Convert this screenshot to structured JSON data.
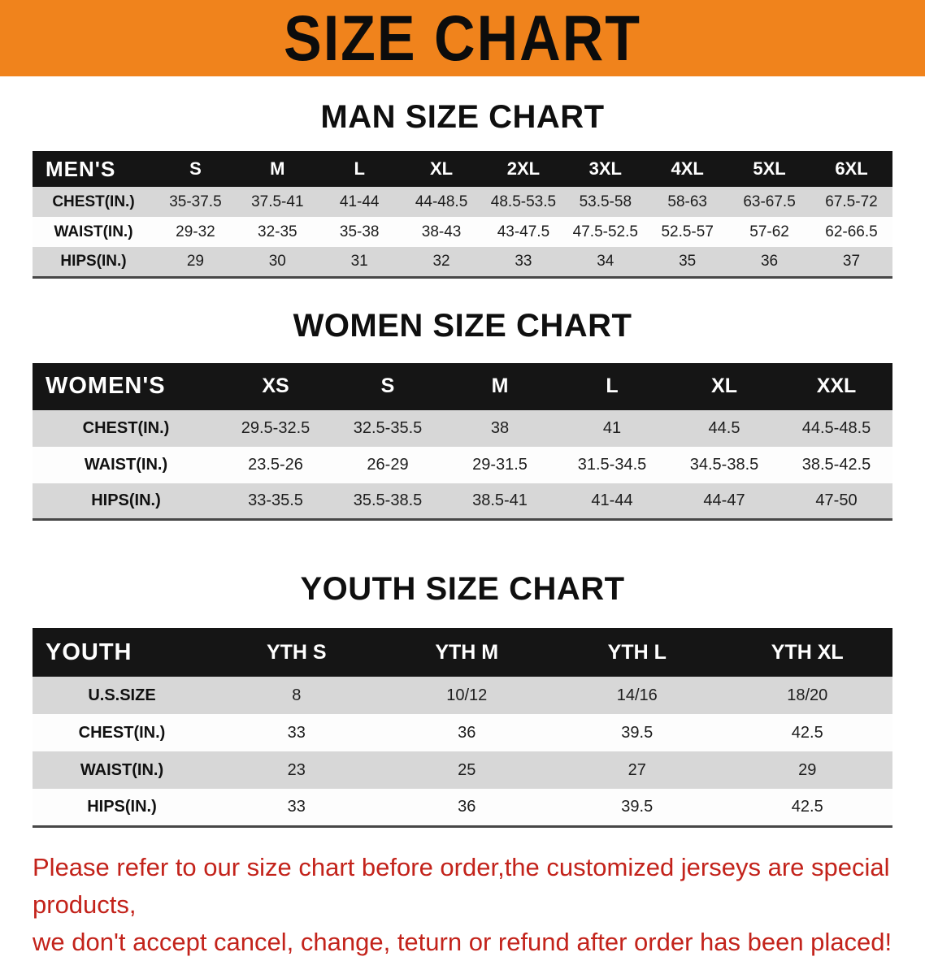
{
  "banner": {
    "title": "SIZE CHART"
  },
  "chart_data": [
    {
      "type": "table",
      "title": "MAN SIZE CHART",
      "columns": [
        "MEN'S",
        "S",
        "M",
        "L",
        "XL",
        "2XL",
        "3XL",
        "4XL",
        "5XL",
        "6XL"
      ],
      "rows": [
        [
          "CHEST(IN.)",
          "35-37.5",
          "37.5-41",
          "41-44",
          "44-48.5",
          "48.5-53.5",
          "53.5-58",
          "58-63",
          "63-67.5",
          "67.5-72"
        ],
        [
          "WAIST(IN.)",
          "29-32",
          "32-35",
          "35-38",
          "38-43",
          "43-47.5",
          "47.5-52.5",
          "52.5-57",
          "57-62",
          "62-66.5"
        ],
        [
          "HIPS(IN.)",
          "29",
          "30",
          "31",
          "32",
          "33",
          "34",
          "35",
          "36",
          "37"
        ]
      ]
    },
    {
      "type": "table",
      "title": "WOMEN SIZE CHART",
      "columns": [
        "WOMEN'S",
        "XS",
        "S",
        "M",
        "L",
        "XL",
        "XXL"
      ],
      "rows": [
        [
          "CHEST(IN.)",
          "29.5-32.5",
          "32.5-35.5",
          "38",
          "41",
          "44.5",
          "44.5-48.5"
        ],
        [
          "WAIST(IN.)",
          "23.5-26",
          "26-29",
          "29-31.5",
          "31.5-34.5",
          "34.5-38.5",
          "38.5-42.5"
        ],
        [
          "HIPS(IN.)",
          "33-35.5",
          "35.5-38.5",
          "38.5-41",
          "41-44",
          "44-47",
          "47-50"
        ]
      ]
    },
    {
      "type": "table",
      "title": "YOUTH SIZE CHART",
      "columns": [
        "YOUTH",
        "YTH S",
        "YTH M",
        "YTH L",
        "YTH XL"
      ],
      "rows": [
        [
          "U.S.SIZE",
          "8",
          "10/12",
          "14/16",
          "18/20"
        ],
        [
          "CHEST(IN.)",
          "33",
          "36",
          "39.5",
          "42.5"
        ],
        [
          "WAIST(IN.)",
          "23",
          "25",
          "27",
          "29"
        ],
        [
          "HIPS(IN.)",
          "33",
          "36",
          "39.5",
          "42.5"
        ]
      ]
    }
  ],
  "footer": {
    "line1": "Please refer to our size chart before order,the customized jerseys are special products,",
    "line2": "we don't accept cancel, change, teturn or refund after order has been placed!"
  },
  "colors": {
    "banner_bg": "#f0831c",
    "table_header_bg": "#151515",
    "table_header_text": "#ffffff",
    "row_stripe": "#d7d7d7",
    "footer_text": "#c3231b"
  }
}
